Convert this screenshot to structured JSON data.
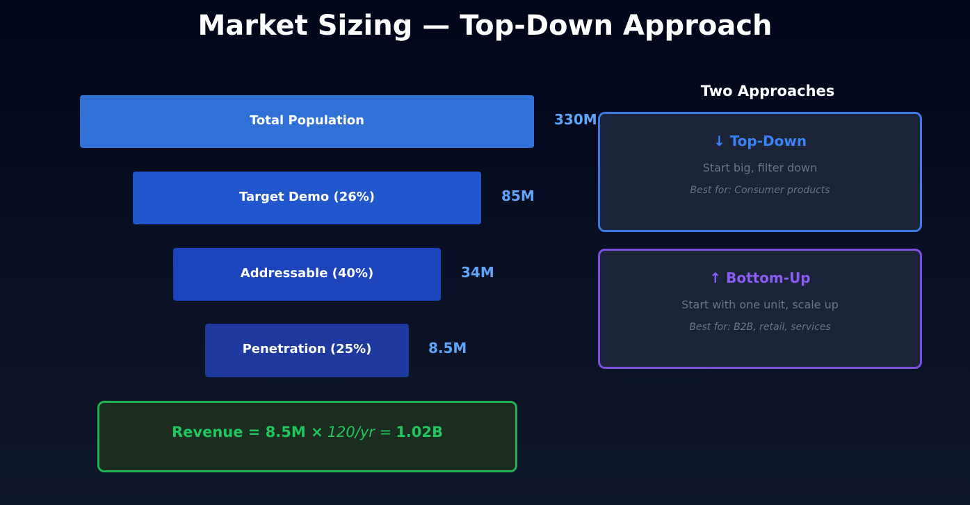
{
  "title": "Market Sizing — Top-Down Approach",
  "funnel": [
    {
      "label": "Total Population",
      "value": "330M",
      "color": "#3170d6"
    },
    {
      "label": "Target Demo (26%)",
      "value": "85M",
      "color": "#2256cc"
    },
    {
      "label": "Addressable (40%)",
      "value": "34M",
      "color": "#1b43bb"
    },
    {
      "label": "Penetration (25%)",
      "value": "8.5M",
      "color": "#1e3a9e"
    }
  ],
  "revenue": {
    "prefix": "Revenue = 8.5M ×",
    "middle": "120/yr =",
    "result": "1.02B"
  },
  "approaches": {
    "title": "Two Approaches",
    "cards": [
      {
        "heading": "↓ Top-Down",
        "desc": "Start big, filter down",
        "best": "Best for: Consumer products",
        "color": "#3b82f6"
      },
      {
        "heading": "↑ Bottom-Up",
        "desc": "Start with one unit, scale up",
        "best": "Best for: B2B, retail, services",
        "color": "#8b5cf6"
      }
    ]
  }
}
